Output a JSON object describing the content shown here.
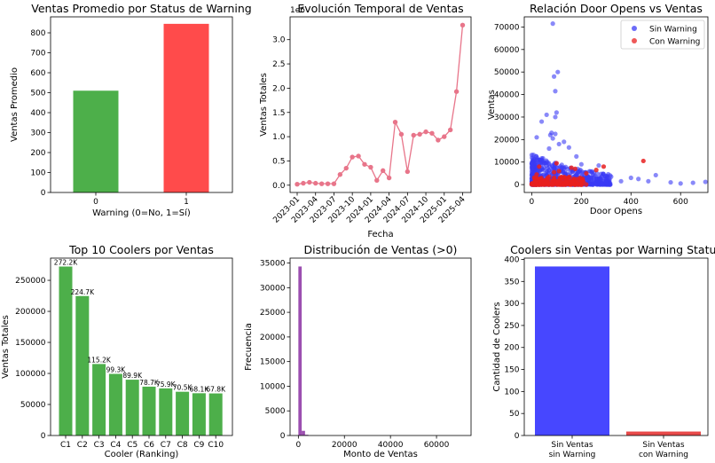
{
  "chart_data": [
    {
      "id": "p1",
      "type": "bar",
      "title": "Ventas Promedio por Status de Warning",
      "xlabel": "Warning (0=No, 1=Sí)",
      "ylabel": "Ventas Promedio",
      "categories": [
        "0",
        "1"
      ],
      "values": [
        510,
        845
      ],
      "ylim": [
        0,
        880
      ],
      "yticks": [
        0,
        100,
        200,
        300,
        400,
        500,
        600,
        700,
        800
      ],
      "colors": [
        "#4daf4a",
        "#ff4b4b"
      ]
    },
    {
      "id": "p2",
      "type": "line",
      "title": "Evolución Temporal de Ventas",
      "xlabel": "Fecha",
      "ylabel": "Ventas Totales",
      "scale_label": "1e6",
      "color": "#e8758a",
      "x_months": [
        0,
        1,
        2,
        3,
        4,
        5,
        6,
        7,
        8,
        9,
        10,
        11,
        12,
        13,
        14,
        15,
        16,
        17,
        18,
        19,
        20,
        21,
        22,
        23,
        24,
        25,
        26
      ],
      "values": [
        0.02,
        0.04,
        0.06,
        0.04,
        0.03,
        0.03,
        0.03,
        0.22,
        0.35,
        0.58,
        0.6,
        0.43,
        0.37,
        0.1,
        0.3,
        0.15,
        1.3,
        1.05,
        0.28,
        1.03,
        1.05,
        1.1,
        1.07,
        0.93,
        1.0,
        1.14,
        1.93
      ],
      "last_point": {
        "x_month": 27,
        "value": 3.3
      },
      "ylim": [
        -0.15,
        3.47
      ],
      "yticks": [
        "0.0",
        "0.5",
        "1.0",
        "1.5",
        "2.0",
        "2.5",
        "3.0"
      ],
      "xtick_labels": [
        "2023-01",
        "2023-04",
        "2023-07",
        "2023-10",
        "2024-01",
        "2024-04",
        "2024-07",
        "2024-10",
        "2025-01",
        "2025-04"
      ]
    },
    {
      "id": "p3",
      "type": "scatter",
      "title": "Relación Door Opens vs Ventas",
      "xlabel": "Door Opens",
      "ylabel": "Ventas",
      "xlim": [
        -30,
        710
      ],
      "ylim": [
        -3500,
        74500
      ],
      "xticks": [
        0,
        200,
        400,
        600
      ],
      "yticks": [
        0,
        10000,
        20000,
        30000,
        40000,
        50000,
        60000,
        70000
      ],
      "legend": [
        {
          "label": "Sin Warning",
          "color": "#3b3bf5"
        },
        {
          "label": "Con Warning",
          "color": "#e82020"
        }
      ],
      "sin_warning_outliers": [
        [
          85,
          71500
        ],
        [
          105,
          50000
        ],
        [
          90,
          48000
        ],
        [
          95,
          41500
        ],
        [
          100,
          32000
        ],
        [
          95,
          30000
        ],
        [
          60,
          31000
        ],
        [
          80,
          23000
        ],
        [
          75,
          22000
        ],
        [
          95,
          22500
        ],
        [
          40,
          28000
        ],
        [
          130,
          19000
        ],
        [
          150,
          16500
        ],
        [
          180,
          12500
        ],
        [
          200,
          9000
        ],
        [
          270,
          8500
        ],
        [
          320,
          3500
        ],
        [
          400,
          3000
        ],
        [
          430,
          2500
        ],
        [
          500,
          4200
        ],
        [
          470,
          1500
        ],
        [
          560,
          1000
        ],
        [
          600,
          500
        ],
        [
          650,
          800
        ],
        [
          700,
          1200
        ],
        [
          300,
          2000
        ],
        [
          360,
          1500
        ],
        [
          20,
          21000
        ],
        [
          70,
          16000
        ],
        [
          110,
          18000
        ],
        [
          85,
          20500
        ]
      ],
      "con_warning_points": [
        [
          450,
          10500
        ],
        [
          290,
          8000
        ],
        [
          260,
          6500
        ],
        [
          160,
          7500
        ],
        [
          175,
          7000
        ],
        [
          220,
          5000
        ],
        [
          100,
          9500
        ],
        [
          90,
          5500
        ],
        [
          110,
          6000
        ],
        [
          20,
          4500
        ],
        [
          60,
          2000
        ],
        [
          120,
          3000
        ],
        [
          200,
          1500
        ],
        [
          50,
          500
        ],
        [
          30,
          8000
        ],
        [
          70,
          3500
        ],
        [
          140,
          1000
        ]
      ]
    },
    {
      "id": "p4",
      "type": "bar",
      "title": "Top 10 Coolers por Ventas",
      "xlabel": "Cooler (Ranking)",
      "ylabel": "Ventas Totales",
      "categories": [
        "C1",
        "C2",
        "C3",
        "C4",
        "C5",
        "C6",
        "C7",
        "C8",
        "C9",
        "C10"
      ],
      "values": [
        272200,
        224700,
        115200,
        99300,
        89900,
        78700,
        75900,
        70500,
        68100,
        67800
      ],
      "data_labels": [
        "272.2K",
        "224.7K",
        "115.2K",
        "99.3K",
        "89.9K",
        "78.7K",
        "75.9K",
        "70.5K",
        "68.1K",
        "67.8K"
      ],
      "ylim": [
        0,
        285800
      ],
      "yticks": [
        0,
        50000,
        100000,
        150000,
        200000,
        250000
      ],
      "color": "#4daf4a"
    },
    {
      "id": "p5",
      "type": "histogram",
      "title": "Distribución de Ventas (>0)",
      "xlabel": "Monto de Ventas",
      "ylabel": "Frecuencia",
      "bins": [
        [
          0,
          1450,
          34300
        ],
        [
          1450,
          2900,
          950
        ],
        [
          2900,
          4350,
          150
        ]
      ],
      "xlim": [
        -3600,
        75000
      ],
      "ylim": [
        0,
        36000
      ],
      "xticks": [
        0,
        20000,
        40000,
        60000
      ],
      "yticks": [
        0,
        5000,
        10000,
        15000,
        20000,
        25000,
        30000,
        35000
      ],
      "color": "#9b4fb0"
    },
    {
      "id": "p6",
      "type": "bar",
      "title": "Coolers sin Ventas por Warning Status",
      "xlabel": "",
      "ylabel": "Cantidad de Coolers",
      "categories": [
        "Sin Ventas\nsin Warning",
        "Sin Ventas\ncon Warning"
      ],
      "values": [
        384,
        9
      ],
      "ylim": [
        0,
        403
      ],
      "yticks": [
        0,
        50,
        100,
        150,
        200,
        250,
        300,
        350,
        400
      ],
      "colors": [
        "#4747ff",
        "#e84a4a"
      ]
    }
  ]
}
